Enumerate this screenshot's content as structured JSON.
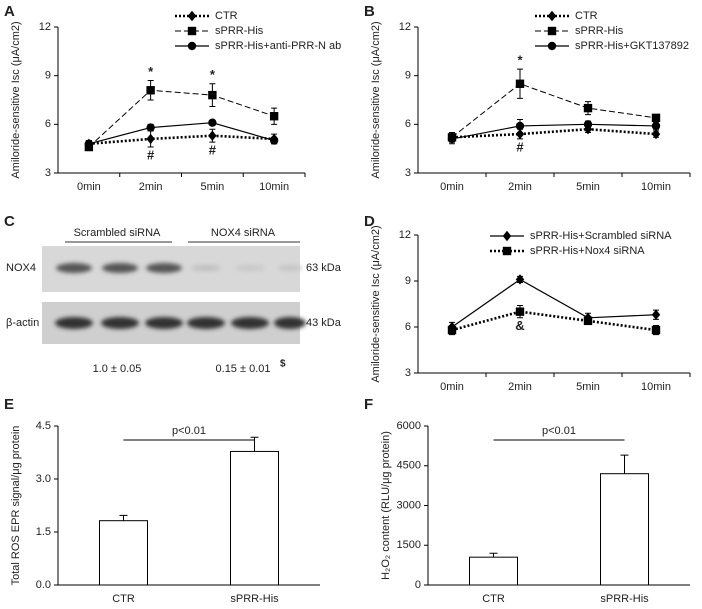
{
  "chart_data": [
    {
      "panel": "A",
      "type": "line",
      "ylabel": "Amiloride-sensitive Isc (μA/cm2)",
      "categories": [
        "0min",
        "2min",
        "5min",
        "10min"
      ],
      "ylim": [
        3,
        12
      ],
      "yticks": [
        3,
        6,
        9,
        12
      ],
      "legend": "upper right",
      "series": [
        {
          "name": "CTR",
          "color": "#000000",
          "style": "dotted",
          "marker": "diamond",
          "values": [
            4.8,
            5.1,
            5.3,
            5.1
          ],
          "errors": [
            0.2,
            0.5,
            0.4,
            0.3
          ],
          "annotations": [
            null,
            "#",
            "#",
            null
          ],
          "annotation_side": "below"
        },
        {
          "name": "sPRR-His",
          "color": "#000000",
          "style": "dashed",
          "marker": "square",
          "values": [
            4.6,
            8.1,
            7.8,
            6.5
          ],
          "errors": [
            0.2,
            0.6,
            0.7,
            0.5
          ],
          "annotations": [
            null,
            "*",
            "*",
            null
          ],
          "annotation_side": "above"
        },
        {
          "name": "sPRR-His+anti-PRR-N ab",
          "color": "#000000",
          "style": "solid",
          "marker": "circle",
          "values": [
            4.8,
            5.8,
            6.1,
            5.0
          ],
          "errors": [
            0.2,
            0.2,
            0.1,
            0.2
          ]
        }
      ]
    },
    {
      "panel": "B",
      "type": "line",
      "ylabel": "Amiloride-sensitive Isc (μA/cm2)",
      "categories": [
        "0min",
        "2min",
        "5min",
        "10min"
      ],
      "ylim": [
        3,
        12
      ],
      "yticks": [
        3,
        6,
        9,
        12
      ],
      "legend": "upper right",
      "series": [
        {
          "name": "CTR",
          "color": "#000000",
          "style": "dotted",
          "marker": "diamond",
          "values": [
            5.2,
            5.4,
            5.7,
            5.4
          ],
          "errors": [
            0.2,
            0.3,
            0.2,
            0.2
          ],
          "annotations": [
            null,
            "#",
            null,
            null
          ],
          "annotation_side": "below"
        },
        {
          "name": "sPRR-His",
          "color": "#000000",
          "style": "dashed",
          "marker": "square",
          "values": [
            5.2,
            8.5,
            7.0,
            6.4
          ],
          "errors": [
            0.3,
            0.9,
            0.4,
            0.2
          ],
          "annotations": [
            null,
            "*",
            null,
            null
          ],
          "annotation_side": "above"
        },
        {
          "name": "sPRR-His+GKT137892",
          "color": "#000000",
          "style": "solid",
          "marker": "circle",
          "values": [
            5.1,
            5.9,
            6.0,
            5.9
          ],
          "errors": [
            0.3,
            0.4,
            0.2,
            0.2
          ]
        }
      ]
    },
    {
      "panel": "D",
      "type": "line",
      "ylabel": "Amiloride-sensitive Isc (μA/cm2)",
      "categories": [
        "0min",
        "2min",
        "5min",
        "10min"
      ],
      "ylim": [
        3,
        12
      ],
      "yticks": [
        3,
        6,
        9,
        12
      ],
      "legend": "upper right",
      "series": [
        {
          "name": "sPRR-His+Scrambled siRNA",
          "color": "#000000",
          "style": "solid",
          "marker": "diamond",
          "values": [
            6.0,
            9.1,
            6.6,
            6.8
          ],
          "errors": [
            0.3,
            0.2,
            0.3,
            0.3
          ]
        },
        {
          "name": "sPRR-His+Nox4 siRNA",
          "color": "#000000",
          "style": "dotted",
          "marker": "square",
          "values": [
            5.8,
            7.0,
            6.4,
            5.8
          ],
          "errors": [
            0.3,
            0.4,
            0.2,
            0.3
          ],
          "annotations": [
            null,
            "&",
            null,
            null
          ],
          "annotation_side": "below"
        }
      ]
    },
    {
      "panel": "E",
      "type": "bar",
      "ylabel": "Total ROS EPR signal/μg protein",
      "categories": [
        "CTR",
        "sPRR-His"
      ],
      "values": [
        1.82,
        3.78
      ],
      "errors": [
        0.15,
        0.4
      ],
      "color": "#ffffff",
      "ylim": [
        0,
        4.5
      ],
      "yticks": [
        {
          "value": 0,
          "label": "0.0"
        },
        1.5,
        {
          "value": 3,
          "label": "3.0"
        },
        4.5
      ],
      "significance": "p<0.01"
    },
    {
      "panel": "F",
      "type": "bar",
      "ylabel": "H₂O₂ content (RLU/μg protein)",
      "categories": [
        "CTR",
        "sPRR-His"
      ],
      "values": [
        1050,
        4200
      ],
      "errors": [
        150,
        700
      ],
      "color": "#ffffff",
      "ylim": [
        0,
        6000
      ],
      "yticks": [
        0,
        1500,
        3000,
        4500,
        6000
      ],
      "significance": "p<0.01"
    }
  ],
  "blot": {
    "panel": "C",
    "groups": [
      "Scrambled siRNA",
      "NOX4 siRNA"
    ],
    "rows": [
      {
        "label": "NOX4",
        "size": "63 kDa"
      },
      {
        "label": "β-actin",
        "size": "43 kDa"
      }
    ],
    "quantification": [
      "1.0 ± 0.05",
      "0.15 ± 0.01"
    ],
    "note": "$"
  }
}
